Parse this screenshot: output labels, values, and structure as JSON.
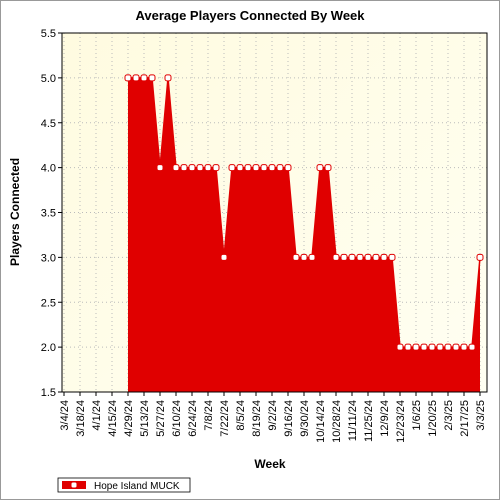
{
  "chart_data": {
    "type": "area",
    "title": "Average Players Connected By Week",
    "x_label": "Week",
    "y_label": "Players Connected",
    "categories": [
      "3/4/24",
      null,
      "3/18/24",
      null,
      "4/1/24",
      null,
      "4/15/24",
      null,
      "4/29/24",
      null,
      "5/13/24",
      null,
      "5/27/24",
      null,
      "6/10/24",
      null,
      "6/24/24",
      null,
      "7/8/24",
      null,
      "7/22/24",
      null,
      "8/5/24",
      null,
      "8/19/24",
      null,
      "9/2/24",
      null,
      "9/16/24",
      null,
      "9/30/24",
      null,
      "10/14/24",
      null,
      "10/28/24",
      null,
      "11/11/24",
      null,
      "11/25/24",
      null,
      "12/9/24",
      null,
      "12/23/24",
      null,
      "1/6/25",
      null,
      "1/20/25",
      null,
      "2/3/25",
      null,
      "2/17/25",
      null,
      "3/3/25"
    ],
    "series": [
      {
        "name": "Hope Island MUCK",
        "color": "#e00000",
        "values": [
          null,
          null,
          null,
          null,
          null,
          null,
          null,
          null,
          5,
          5,
          5,
          5,
          4,
          5,
          4,
          4,
          4,
          4,
          4,
          4,
          3,
          4,
          4,
          4,
          4,
          4,
          4,
          4,
          4,
          3,
          3,
          3,
          4,
          4,
          3,
          3,
          3,
          3,
          3,
          3,
          3,
          3,
          2,
          2,
          2,
          2,
          2,
          2,
          2,
          2,
          2,
          2,
          3
        ]
      }
    ],
    "ylim": [
      1.5,
      5.5
    ],
    "yticks": [
      1.5,
      {
        "value": 2,
        "label": "2.0"
      },
      2.5,
      {
        "value": 3,
        "label": "3.0"
      },
      3.5,
      {
        "value": 4,
        "label": "4.0"
      },
      4.5,
      {
        "value": 5,
        "label": "5.0"
      },
      5.5
    ],
    "grid": true,
    "legend": "bottom-left"
  }
}
